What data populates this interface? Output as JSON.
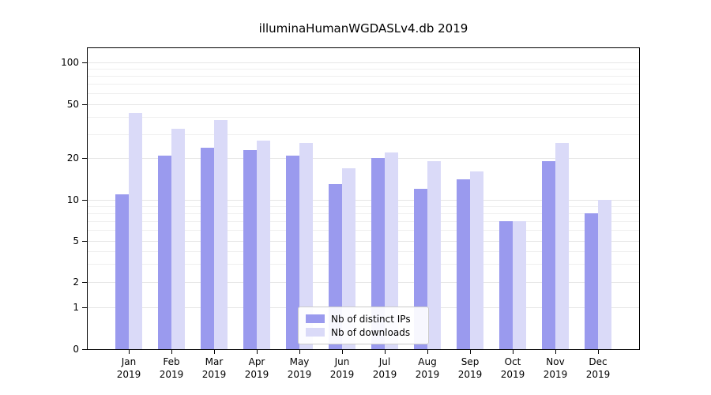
{
  "chart_data": {
    "type": "bar",
    "title": "illuminaHumanWGDASLv4.db 2019",
    "categories": [
      "Jan",
      "Feb",
      "Mar",
      "Apr",
      "May",
      "Jun",
      "Jul",
      "Aug",
      "Sep",
      "Oct",
      "Nov",
      "Dec"
    ],
    "year_label": "2019",
    "series": [
      {
        "name": "Nb of distinct IPs",
        "color": "#9a9aee",
        "values": [
          11,
          21,
          24,
          23,
          21,
          13,
          20,
          12,
          14,
          7,
          19,
          8
        ]
      },
      {
        "name": "Nb of downloads",
        "color": "#dadaf8",
        "values": [
          43,
          33,
          38,
          27,
          26,
          17,
          22,
          19,
          16,
          7,
          26,
          10
        ]
      }
    ],
    "yticks": [
      0,
      1,
      2,
      5,
      10,
      20,
      50,
      100
    ],
    "minor_gridlines": [
      3,
      4,
      6,
      7,
      8,
      9,
      30,
      40,
      60,
      70,
      80,
      90
    ],
    "xlabel": "",
    "ylabel": "",
    "yscale": "log-like with zero baseline",
    "grid": "horizontal",
    "legend_position": "bottom-center"
  }
}
